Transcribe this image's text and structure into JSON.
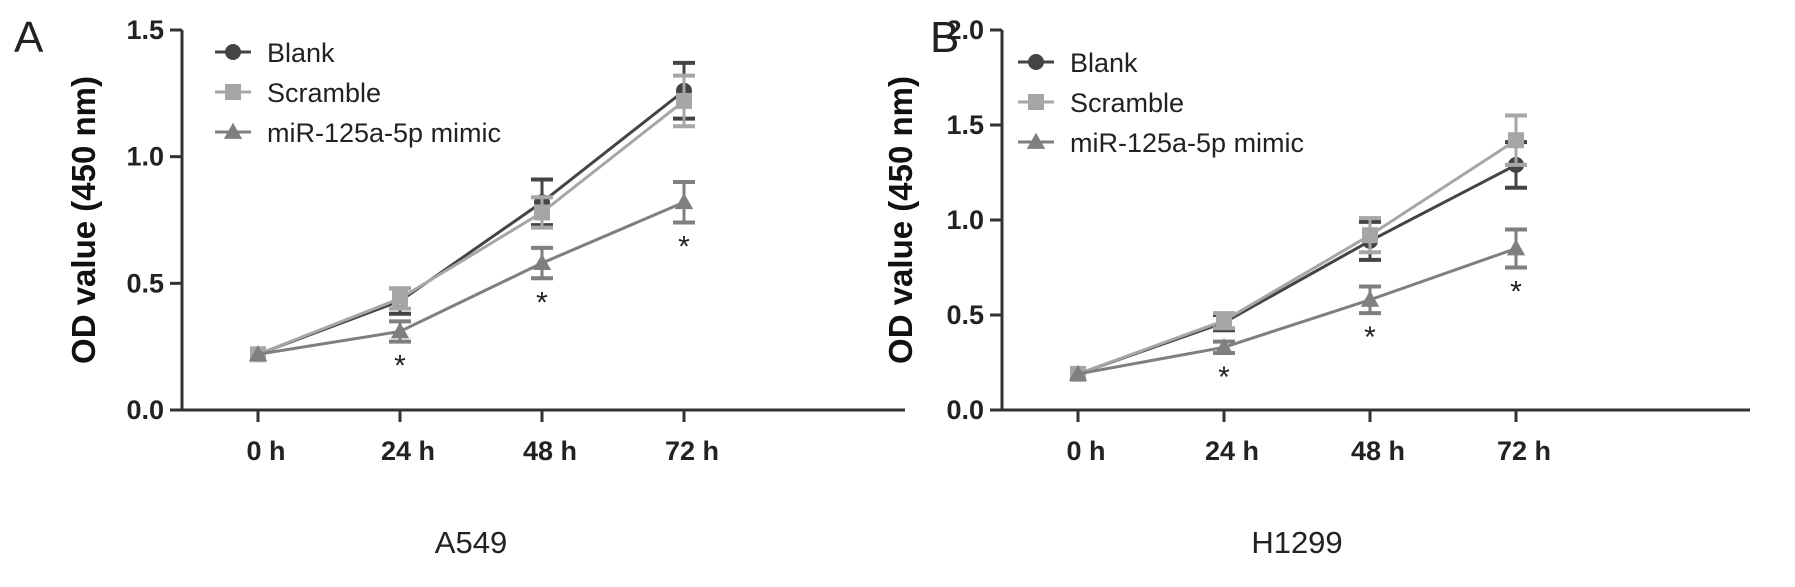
{
  "chart_data": [
    {
      "panel": "A",
      "type": "line",
      "categories": [
        "0 h",
        "24 h",
        "48 h",
        "72 h"
      ],
      "ylabel": "OD value (450 nm)",
      "xlabel": "A549",
      "ylim": [
        0,
        1.5
      ],
      "yticks": [
        "0.0",
        "0.5",
        "1.0",
        "1.5"
      ],
      "series": [
        {
          "name": "Blank",
          "color": "#444444",
          "marker": "circle",
          "values": [
            0.22,
            0.43,
            0.82,
            1.26
          ],
          "err": [
            0.01,
            0.05,
            0.09,
            0.11
          ]
        },
        {
          "name": "Scramble",
          "color": "#a6a6a6",
          "marker": "square",
          "values": [
            0.22,
            0.44,
            0.78,
            1.22
          ],
          "err": [
            0.01,
            0.04,
            0.06,
            0.1
          ]
        },
        {
          "name": "miR-125a-5p mimic",
          "color": "#7f7f7f",
          "marker": "triangle",
          "values": [
            0.22,
            0.31,
            0.58,
            0.82
          ],
          "err": [
            0.01,
            0.04,
            0.06,
            0.08
          ]
        }
      ],
      "annotations": [
        "",
        "*",
        "*",
        "*"
      ]
    },
    {
      "panel": "B",
      "type": "line",
      "categories": [
        "0 h",
        "24 h",
        "48 h",
        "72 h"
      ],
      "ylabel": "OD value (450 nm)",
      "xlabel": "H1299",
      "ylim": [
        0,
        2.0
      ],
      "yticks": [
        "0.0",
        "0.5",
        "1.0",
        "1.5",
        "2.0"
      ],
      "series": [
        {
          "name": "Blank",
          "color": "#444444",
          "marker": "circle",
          "values": [
            0.19,
            0.46,
            0.89,
            1.29
          ],
          "err": [
            0.01,
            0.04,
            0.1,
            0.12
          ]
        },
        {
          "name": "Scramble",
          "color": "#a6a6a6",
          "marker": "square",
          "values": [
            0.19,
            0.47,
            0.92,
            1.42
          ],
          "err": [
            0.01,
            0.04,
            0.09,
            0.13
          ]
        },
        {
          "name": "miR-125a-5p mimic",
          "color": "#7f7f7f",
          "marker": "triangle",
          "values": [
            0.19,
            0.33,
            0.58,
            0.85
          ],
          "err": [
            0.01,
            0.03,
            0.07,
            0.1
          ]
        }
      ],
      "annotations": [
        "",
        "*",
        "*",
        "*"
      ]
    }
  ]
}
